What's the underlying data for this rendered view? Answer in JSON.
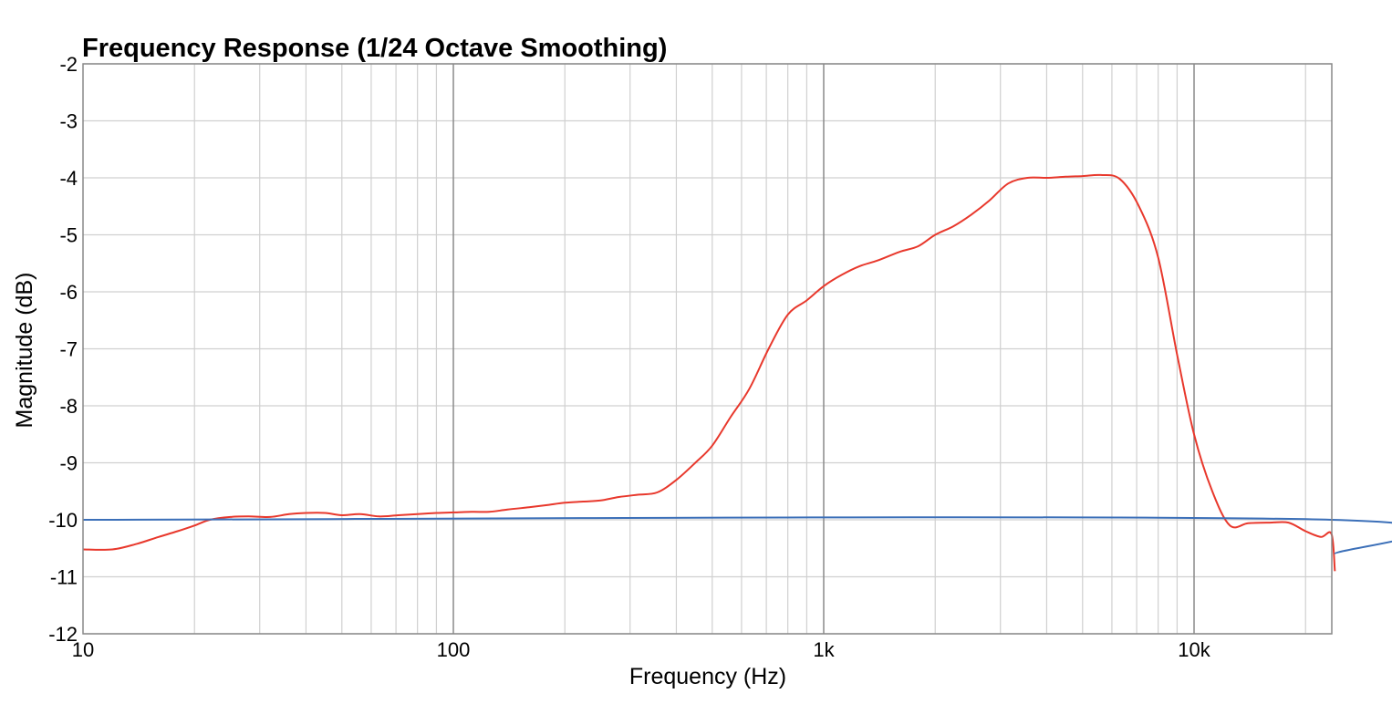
{
  "chart_data": {
    "type": "line",
    "title": "Frequency Response (1/24 Octave Smoothing)",
    "xlabel": "Frequency (Hz)",
    "ylabel": "Magnitude (dB)",
    "x_scale": "log",
    "xlim": [
      10,
      24000
    ],
    "ylim": [
      -12,
      -2
    ],
    "x_ticks": [
      {
        "value": 10,
        "label": "10"
      },
      {
        "value": 100,
        "label": "100"
      },
      {
        "value": 1000,
        "label": "1k"
      },
      {
        "value": 10000,
        "label": "10k"
      }
    ],
    "y_ticks": [
      {
        "value": -2,
        "label": "-2"
      },
      {
        "value": -3,
        "label": "-3"
      },
      {
        "value": -4,
        "label": "-4"
      },
      {
        "value": -5,
        "label": "-5"
      },
      {
        "value": -6,
        "label": "-6"
      },
      {
        "value": -7,
        "label": "-7"
      },
      {
        "value": -8,
        "label": "-8"
      },
      {
        "value": -9,
        "label": "-9"
      },
      {
        "value": -10,
        "label": "-10"
      },
      {
        "value": -11,
        "label": "-11"
      },
      {
        "value": -12,
        "label": "-12"
      }
    ],
    "grid": true,
    "series": [
      {
        "color": "#e8382c",
        "x": [
          10,
          12,
          14,
          16,
          18,
          20,
          22,
          25,
          28,
          32,
          36,
          40,
          45,
          50,
          56,
          63,
          71,
          80,
          90,
          100,
          112,
          125,
          140,
          160,
          180,
          200,
          224,
          250,
          280,
          315,
          355,
          400,
          450,
          500,
          560,
          630,
          710,
          800,
          900,
          1000,
          1120,
          1250,
          1400,
          1600,
          1800,
          2000,
          2240,
          2500,
          2800,
          3150,
          3550,
          4000,
          4500,
          5000,
          5600,
          6300,
          7100,
          8000,
          9000,
          10000,
          11200,
          12500,
          14000,
          16000,
          18000,
          20000,
          22000,
          23500,
          24000
        ],
        "y": [
          -10.52,
          -10.52,
          -10.42,
          -10.3,
          -10.2,
          -10.1,
          -10.0,
          -9.95,
          -9.94,
          -9.95,
          -9.9,
          -9.88,
          -9.88,
          -9.92,
          -9.9,
          -9.94,
          -9.92,
          -9.9,
          -9.88,
          -9.87,
          -9.86,
          -9.86,
          -9.82,
          -9.78,
          -9.74,
          -9.7,
          -9.68,
          -9.66,
          -9.6,
          -9.56,
          -9.52,
          -9.3,
          -9.0,
          -8.7,
          -8.2,
          -7.7,
          -7.0,
          -6.4,
          -6.15,
          -5.9,
          -5.7,
          -5.55,
          -5.45,
          -5.3,
          -5.2,
          -5.0,
          -4.85,
          -4.65,
          -4.4,
          -4.1,
          -4.0,
          -4.0,
          -3.98,
          -3.97,
          -3.95,
          -4.02,
          -4.5,
          -5.4,
          -7.1,
          -8.5,
          -9.5,
          -10.1,
          -10.06,
          -10.05,
          -10.05,
          -10.2,
          -10.3,
          -10.25,
          -10.9
        ]
      },
      {
        "color": "#3b6fb8",
        "x": [
          10,
          23500,
          24000
        ],
        "y": [
          -10.0,
          -10.0,
          -10.6
        ]
      }
    ]
  }
}
